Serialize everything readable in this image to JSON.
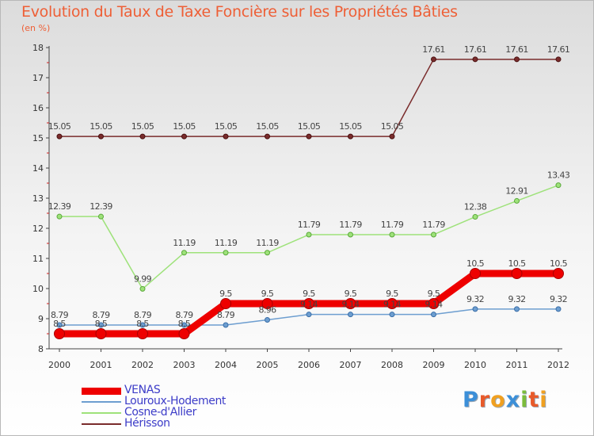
{
  "header": {
    "title": "Evolution du Taux de Taxe Foncière sur les Propriétés Bâties",
    "subtitle": "(en %)"
  },
  "logo": {
    "letters": [
      "P",
      "r",
      "o",
      "x",
      "i",
      "t",
      "i"
    ],
    "colors": [
      "#3c8fd8",
      "#e85a2a",
      "#f0a020",
      "#3c8fd8",
      "#7cbc3c",
      "#e85a2a",
      "#f0a020"
    ]
  },
  "chart_data": {
    "type": "line",
    "title": "Evolution du Taux de Taxe Foncière sur les Propriétés Bâties",
    "ylabel": "(en %)",
    "xlabel": "",
    "ylim": [
      8,
      18
    ],
    "yticks": [
      "8",
      "9",
      "10",
      "11",
      "12",
      "13",
      "14",
      "15",
      "16",
      "17",
      "18"
    ],
    "x": [
      "2000",
      "2001",
      "2002",
      "2003",
      "2004",
      "2005",
      "2006",
      "2007",
      "2008",
      "2009",
      "2010",
      "2011",
      "2012"
    ],
    "legend_position": "bottom-left",
    "grid": false,
    "series": [
      {
        "name": "VENAS",
        "color": "#ee0000",
        "values": [
          8.5,
          8.5,
          8.5,
          8.5,
          9.5,
          9.5,
          9.5,
          9.5,
          9.5,
          9.5,
          10.5,
          10.5,
          10.5
        ],
        "labels": [
          "8.5",
          "8.5",
          "8.5",
          "8.5",
          "9.5",
          "9.5",
          "9.5",
          "9.5",
          "9.5",
          "9.5",
          "10.5",
          "10.5",
          "10.5"
        ]
      },
      {
        "name": "Louroux-Hodement",
        "color": "#6d9ed0",
        "values": [
          8.79,
          8.79,
          8.79,
          8.79,
          8.79,
          8.96,
          9.14,
          9.14,
          9.14,
          9.14,
          9.32,
          9.32,
          9.32
        ],
        "labels": [
          "8.79",
          "8.79",
          "8.79",
          "8.79",
          "8.79",
          "8.96",
          "9.14",
          "9.14",
          "9.14",
          "9.14",
          "9.32",
          "9.32",
          "9.32"
        ]
      },
      {
        "name": "Cosne-d'Allier",
        "color": "#9ee27a",
        "values": [
          12.39,
          12.39,
          9.99,
          11.19,
          11.19,
          11.19,
          11.79,
          11.79,
          11.79,
          11.79,
          12.38,
          12.91,
          13.43
        ],
        "labels": [
          "12.39",
          "12.39",
          "9.99",
          "11.19",
          "11.19",
          "11.19",
          "11.79",
          "11.79",
          "11.79",
          "11.79",
          "12.38",
          "12.91",
          "13.43"
        ]
      },
      {
        "name": "Hérisson",
        "color": "#7a2c2c",
        "values": [
          15.05,
          15.05,
          15.05,
          15.05,
          15.05,
          15.05,
          15.05,
          15.05,
          15.05,
          17.61,
          17.61,
          17.61,
          17.61
        ],
        "labels": [
          "15.05",
          "15.05",
          "15.05",
          "15.05",
          "15.05",
          "15.05",
          "15.05",
          "15.05",
          "15.05",
          "17.61",
          "17.61",
          "17.61",
          "17.61"
        ]
      }
    ]
  }
}
